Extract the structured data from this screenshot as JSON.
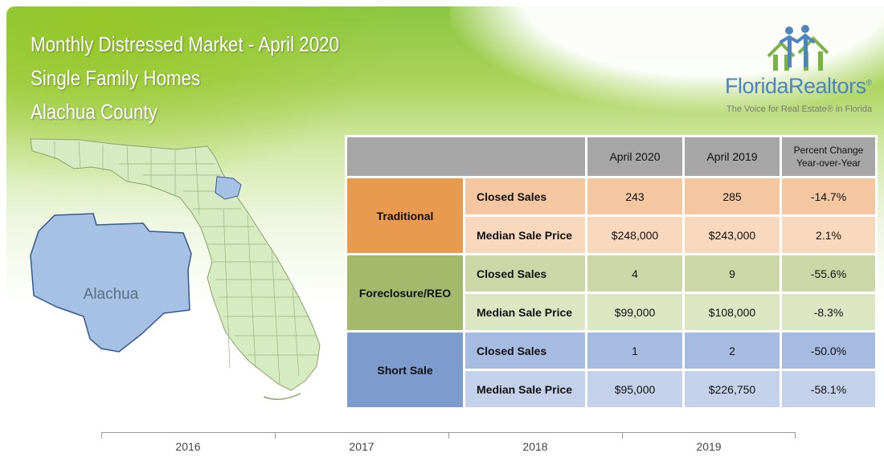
{
  "header": {
    "title_line1": "Monthly Distressed Market - April 2020",
    "title_line2": "Single Family Homes",
    "title_line3": "Alachua County"
  },
  "logo": {
    "name": "FloridaRealtors",
    "registered": "®",
    "tagline": "The Voice for Real Estate® in Florida",
    "icon": "houses-people-icon"
  },
  "map": {
    "label": "Alachua",
    "highlight_color": "#a6c1e3",
    "state_color": "#d7ebc3"
  },
  "table": {
    "headers": {
      "col1": "April 2020",
      "col2": "April 2019",
      "col3_line1": "Percent Change",
      "col3_line2": "Year-over-Year"
    },
    "groups": [
      {
        "name": "Traditional",
        "rows": [
          {
            "metric": "Closed Sales",
            "april_2020": "243",
            "april_2019": "285",
            "change": "-14.7%"
          },
          {
            "metric": "Median Sale Price",
            "april_2020": "$248,000",
            "april_2019": "$243,000",
            "change": "2.1%"
          }
        ]
      },
      {
        "name": "Foreclosure/REO",
        "rows": [
          {
            "metric": "Closed Sales",
            "april_2020": "4",
            "april_2019": "9",
            "change": "-55.6%"
          },
          {
            "metric": "Median Sale Price",
            "april_2020": "$99,000",
            "april_2019": "$108,000",
            "change": "-8.3%"
          }
        ]
      },
      {
        "name": "Short Sale",
        "rows": [
          {
            "metric": "Closed Sales",
            "april_2020": "1",
            "april_2019": "2",
            "change": "-50.0%"
          },
          {
            "metric": "Median Sale Price",
            "april_2020": "$95,000",
            "april_2019": "$226,750",
            "change": "-58.1%"
          }
        ]
      }
    ]
  },
  "timeline": {
    "years": [
      "2016",
      "2017",
      "2018",
      "2019"
    ]
  }
}
